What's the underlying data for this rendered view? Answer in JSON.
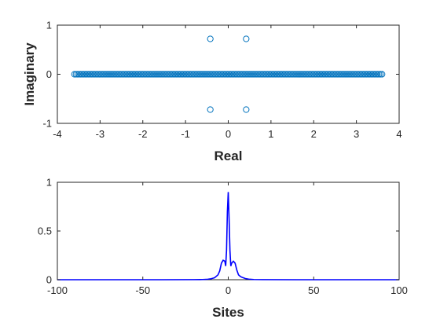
{
  "chart_data": [
    {
      "type": "scatter",
      "title": "",
      "xlabel": "Real",
      "ylabel": "Imaginary",
      "xlim": [
        -4,
        4
      ],
      "ylim": [
        -1,
        1
      ],
      "xticks": [
        "-4",
        "-3",
        "-2",
        "-1",
        "0",
        "1",
        "2",
        "3",
        "4"
      ],
      "yticks": [
        "-1",
        "0",
        "1"
      ],
      "grid": false,
      "marker": "circle-open",
      "color": "#0072BD",
      "real_axis_points": {
        "x_range": [
          -3.6,
          3.6
        ],
        "y": 0,
        "count": 200
      },
      "off_axis_points": [
        {
          "x": -0.42,
          "y": 0.72
        },
        {
          "x": 0.42,
          "y": 0.72
        },
        {
          "x": -0.42,
          "y": -0.72
        },
        {
          "x": 0.42,
          "y": -0.72
        }
      ]
    },
    {
      "type": "line",
      "title": "",
      "xlabel": "Sites",
      "ylabel": "",
      "xlim": [
        -100,
        100
      ],
      "ylim": [
        0,
        1
      ],
      "xticks": [
        "-100",
        "-50",
        "0",
        "50",
        "100"
      ],
      "yticks": [
        "0",
        "0.5",
        "1"
      ],
      "grid": false,
      "color": "#0000FF",
      "series": [
        {
          "x": [
            -100,
            -40,
            -20,
            -15,
            -12,
            -10,
            -8,
            -6,
            -5,
            -4,
            -3,
            -2,
            -1.5,
            -1,
            -0.5,
            0,
            0.5,
            1,
            1.5,
            2,
            3,
            4,
            5,
            6,
            7,
            8,
            10,
            12,
            15,
            20,
            40,
            100
          ],
          "values": [
            0,
            0,
            0.001,
            0.002,
            0.005,
            0.01,
            0.02,
            0.05,
            0.09,
            0.17,
            0.2,
            0.19,
            0.14,
            0.3,
            0.7,
            0.9,
            0.62,
            0.3,
            0.14,
            0.17,
            0.19,
            0.17,
            0.1,
            0.05,
            0.035,
            0.025,
            0.012,
            0.006,
            0.002,
            0.001,
            0,
            0
          ]
        }
      ]
    }
  ]
}
